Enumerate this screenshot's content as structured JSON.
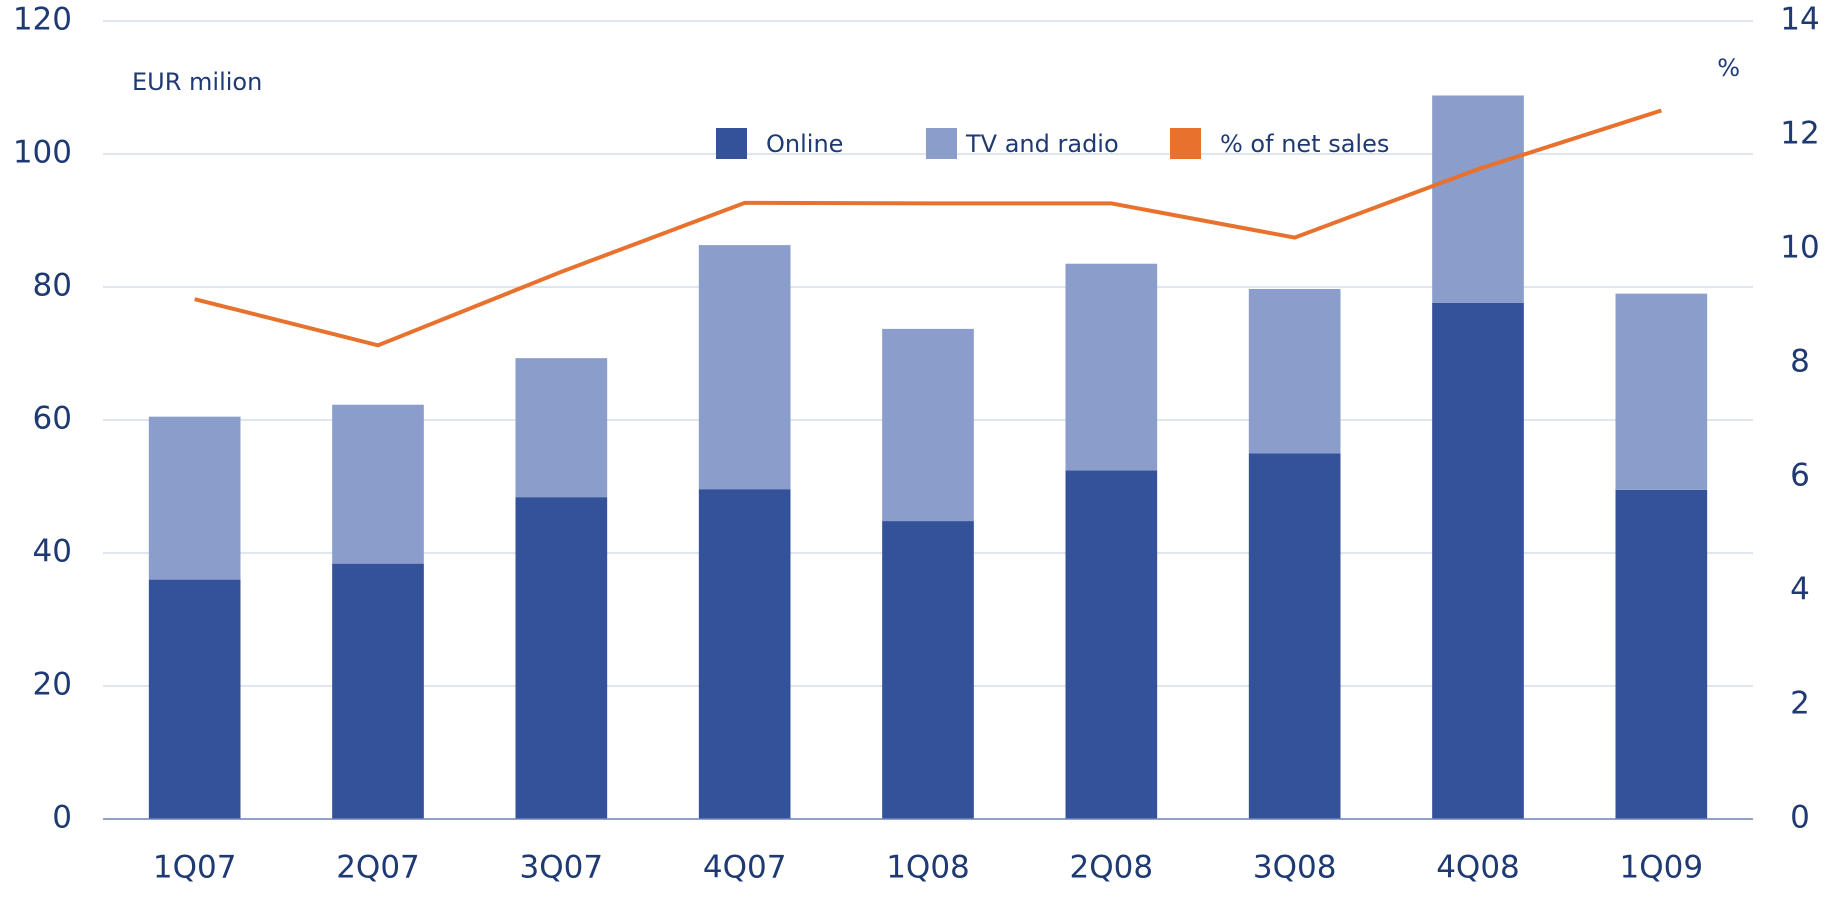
{
  "chart_data": {
    "type": "bar",
    "unit_label": "EUR milion",
    "y2_unit_label": "%",
    "categories": [
      "1Q07",
      "2Q07",
      "3Q07",
      "4Q07",
      "1Q08",
      "2Q08",
      "3Q08",
      "4Q08",
      "1Q09"
    ],
    "series": [
      {
        "name": "Online",
        "color": "#34529a",
        "values": [
          36,
          38.4,
          48.4,
          49.6,
          44.8,
          52.4,
          55,
          77.6,
          49.5
        ]
      },
      {
        "name": "TV and radio",
        "color": "#8a9dcb",
        "values": [
          24.5,
          23.9,
          20.9,
          36.7,
          28.9,
          31.1,
          24.7,
          31.2,
          29.5
        ]
      },
      {
        "name": "% of net sales",
        "color": "#e8712d",
        "type": "line",
        "axis": "y2",
        "values": [
          9.12,
          8.31,
          9.6,
          10.81,
          10.8,
          10.8,
          10.2,
          11.4,
          12.43
        ]
      }
    ],
    "stacked": true,
    "ylim": [
      0,
      120
    ],
    "yticks": [
      0,
      20,
      40,
      60,
      80,
      100,
      120
    ],
    "y2lim": [
      0,
      14
    ],
    "y2ticks": [
      0,
      2,
      4,
      6,
      8,
      10,
      12,
      14
    ],
    "grid": true,
    "legend": "top"
  }
}
